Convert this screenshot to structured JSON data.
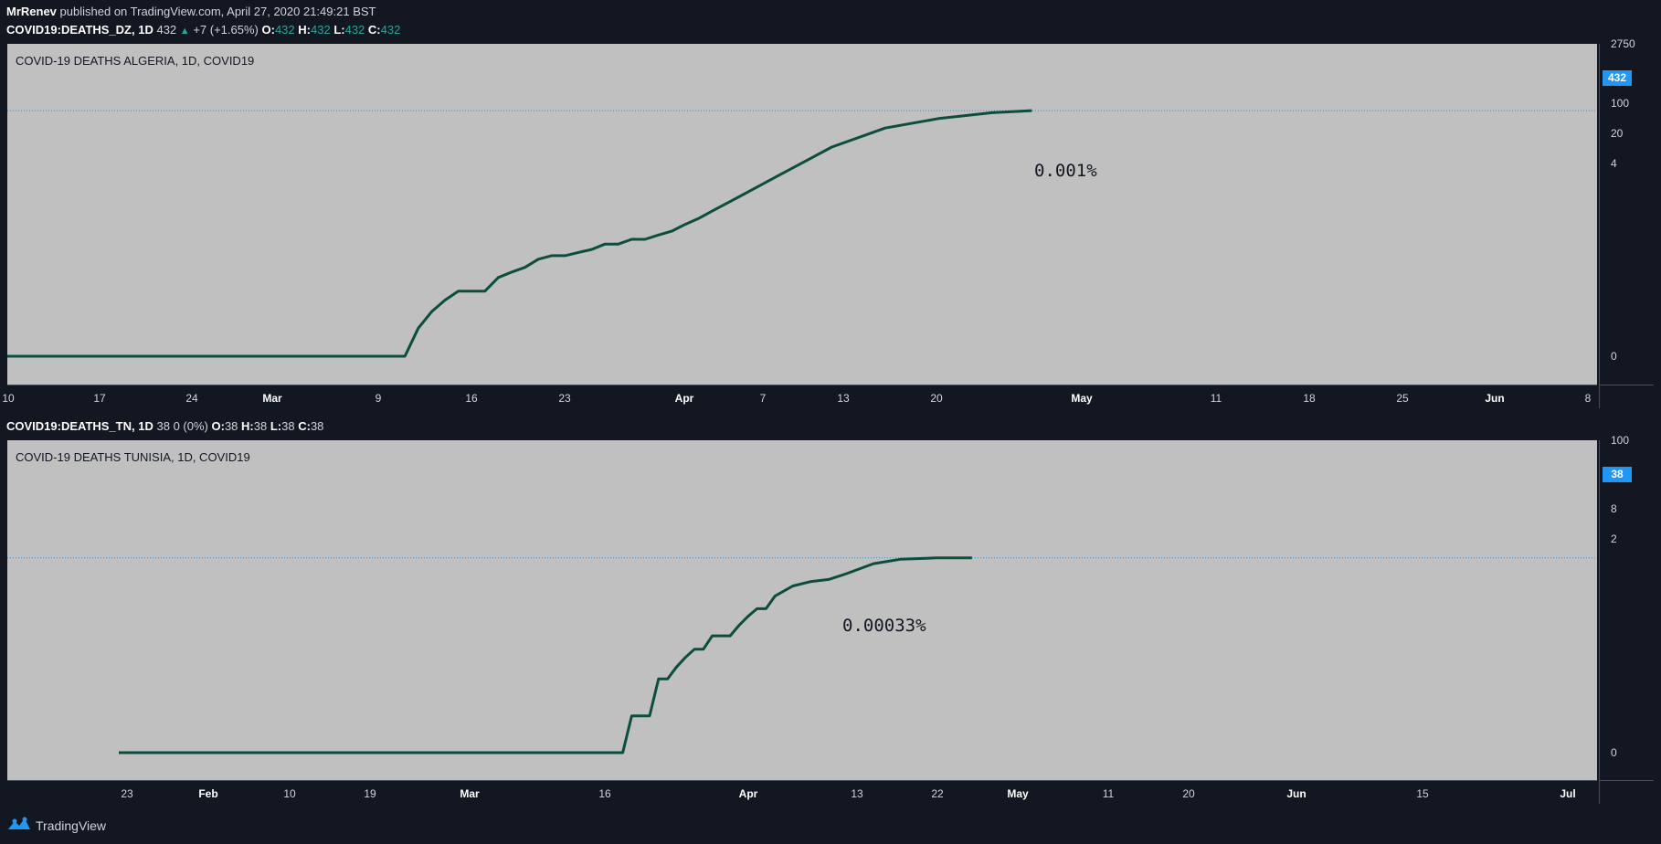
{
  "header": {
    "author": "MrRenev",
    "published_text": "published on TradingView.com, April 27, 2020 21:49:21 BST"
  },
  "colors": {
    "line": "#0c4d3e",
    "pane_bg": "#c0c0c0",
    "accent": "#2196f3",
    "up": "#26a69a"
  },
  "icons": {
    "footer": "tradingview-logo-icon",
    "change": "up-triangle-icon"
  },
  "footer": {
    "brand": "TradingView"
  },
  "chart_data": [
    {
      "type": "line",
      "symbol_line": {
        "symbol": "COVID19:DEATHS_DZ, 1D",
        "last": "432",
        "change": "+7 (+1.65%)",
        "o_label": "O:",
        "o": "432",
        "h_label": "H:",
        "h": "432",
        "l_label": "L:",
        "l": "432",
        "c_label": "C:",
        "c": "432"
      },
      "title": "COVID-19 DEATHS ALGERIA, 1D, COVID19",
      "annotation": "0.001%",
      "last_value_label": "432",
      "y_scale": "log",
      "y_tick_labels": [
        "2750",
        "100",
        "20",
        "4",
        "0"
      ],
      "x_tick_labels": [
        "10",
        "17",
        "24",
        "Mar",
        "9",
        "16",
        "23",
        "Apr",
        "7",
        "13",
        "20",
        "May",
        "11",
        "18",
        "25",
        "Jun",
        "8"
      ],
      "x": [
        "2020-03-11",
        "2020-03-12",
        "2020-03-13",
        "2020-03-14",
        "2020-03-15",
        "2020-03-16",
        "2020-03-17",
        "2020-03-18",
        "2020-03-19",
        "2020-03-20",
        "2020-03-21",
        "2020-03-22",
        "2020-03-23",
        "2020-03-24",
        "2020-03-25",
        "2020-03-26",
        "2020-03-27",
        "2020-03-28",
        "2020-03-29",
        "2020-03-30",
        "2020-03-31",
        "2020-04-01",
        "2020-04-02",
        "2020-04-03",
        "2020-04-05",
        "2020-04-08",
        "2020-04-12",
        "2020-04-16",
        "2020-04-20",
        "2020-04-24",
        "2020-04-27"
      ],
      "values": [
        0,
        1,
        2,
        3,
        4,
        4,
        4,
        6,
        7,
        8,
        10,
        11,
        11,
        12,
        13,
        15,
        15,
        17,
        17,
        19,
        21,
        25,
        29,
        35,
        50,
        86,
        175,
        280,
        355,
        410,
        432
      ],
      "values_note_removed": true
    },
    {
      "type": "line",
      "symbol_line": {
        "symbol": "COVID19:DEATHS_TN, 1D",
        "last": "38",
        "change": "0 (0%)",
        "o_label": "O:",
        "o": "38",
        "h_label": "H:",
        "h": "38",
        "l_label": "L:",
        "l": "38",
        "c_label": "C:",
        "c": "38"
      },
      "title": "COVID-19 DEATHS TUNISIA, 1D, COVID19",
      "annotation": "0.00033%",
      "last_value_label": "38",
      "y_scale": "log",
      "y_tick_labels": [
        "100",
        "8",
        "2",
        "0"
      ],
      "x_tick_labels": [
        "23",
        "Feb",
        "10",
        "19",
        "Mar",
        "16",
        "Apr",
        "13",
        "22",
        "May",
        "11",
        "20",
        "Jun",
        "15",
        "Jul"
      ],
      "x": [
        "2020-03-18",
        "2020-03-19",
        "2020-03-20",
        "2020-03-21",
        "2020-03-22",
        "2020-03-23",
        "2020-03-24",
        "2020-03-25",
        "2020-03-26",
        "2020-03-27",
        "2020-03-28",
        "2020-03-29",
        "2020-03-30",
        "2020-03-31",
        "2020-04-01",
        "2020-04-02",
        "2020-04-03",
        "2020-04-04",
        "2020-04-06",
        "2020-04-08",
        "2020-04-10",
        "2020-04-12",
        "2020-04-15",
        "2020-04-18",
        "2020-04-22",
        "2020-04-26"
      ],
      "values": [
        0,
        1,
        1,
        1,
        3,
        3,
        4,
        5,
        6,
        6,
        8,
        8,
        8,
        10,
        12,
        14,
        14,
        18,
        22,
        24,
        25,
        28,
        34,
        37,
        38,
        38
      ]
    }
  ]
}
